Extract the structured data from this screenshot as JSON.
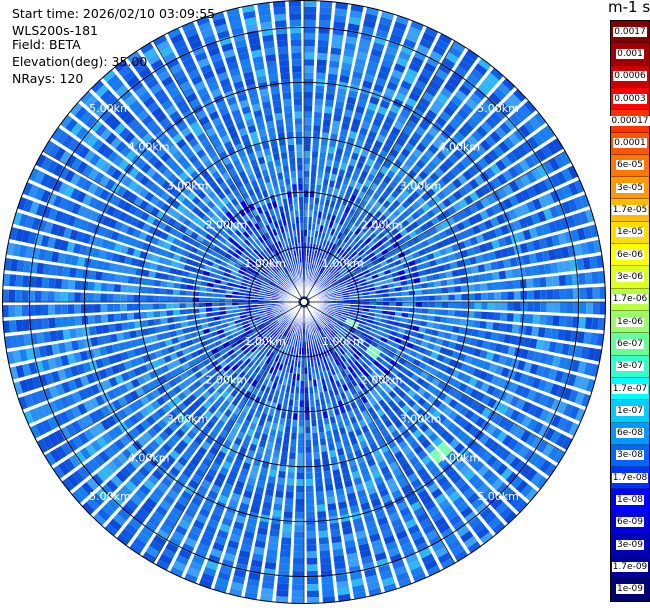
{
  "info": {
    "start_time": "Start time: 2026/02/10 03:09:55",
    "instrument": "WLS200s-181",
    "field": "Field: BETA",
    "elevation": "Elevation(deg): 35.00",
    "nrays": "NRays: 120"
  },
  "colorbar": {
    "title": "m-1 sr-1",
    "labels": [
      "0.0017",
      "0.001",
      "0.0006",
      "0.0003",
      "0.00017",
      "0.0001",
      "6e-05",
      "3e-05",
      "1.7e-05",
      "1e-05",
      "6e-06",
      "3e-06",
      "1.7e-06",
      "1e-06",
      "6e-07",
      "3e-07",
      "1.7e-07",
      "1e-07",
      "6e-08",
      "3e-08",
      "1.7e-08",
      "1e-08",
      "6e-09",
      "3e-09",
      "1.7e-09",
      "1e-09"
    ],
    "colors": [
      "#7f0000",
      "#a00000",
      "#c80000",
      "#ff0000",
      "#ff3300",
      "#ff5500",
      "#ff7700",
      "#ff9900",
      "#ffbb00",
      "#ffdd00",
      "#ffff00",
      "#ddff22",
      "#bbff44",
      "#99ff66",
      "#66ff99",
      "#33ffcc",
      "#00ffff",
      "#00ccff",
      "#0099ff",
      "#0066ff",
      "#0033ff",
      "#0000ff",
      "#0000dd",
      "#0000bb",
      "#000099",
      "#000077"
    ]
  },
  "chart_data": {
    "type": "ppi_scan",
    "field": "BETA",
    "elevation_deg": 35.0,
    "nrays": 120,
    "max_range_km": 5.5,
    "range_rings_km": [
      1.0,
      2.0,
      3.0,
      4.0,
      5.0
    ],
    "ring_labels": [
      "1.00km",
      "2.00km",
      "3.00km",
      "4.00km",
      "5.00km"
    ],
    "dominant_value_range": [
      1e-08,
      6e-08
    ],
    "near_field_value": 1e-09,
    "features": [
      {
        "azimuth_deg": 125,
        "range_km": 1.6,
        "value": 1.7e-07
      },
      {
        "azimuth_deg": 137,
        "range_km": 3.7,
        "value": 1.7e-07
      },
      {
        "azimuth_deg": 115,
        "range_km": 0.9,
        "value": 1.7e-07
      }
    ]
  }
}
